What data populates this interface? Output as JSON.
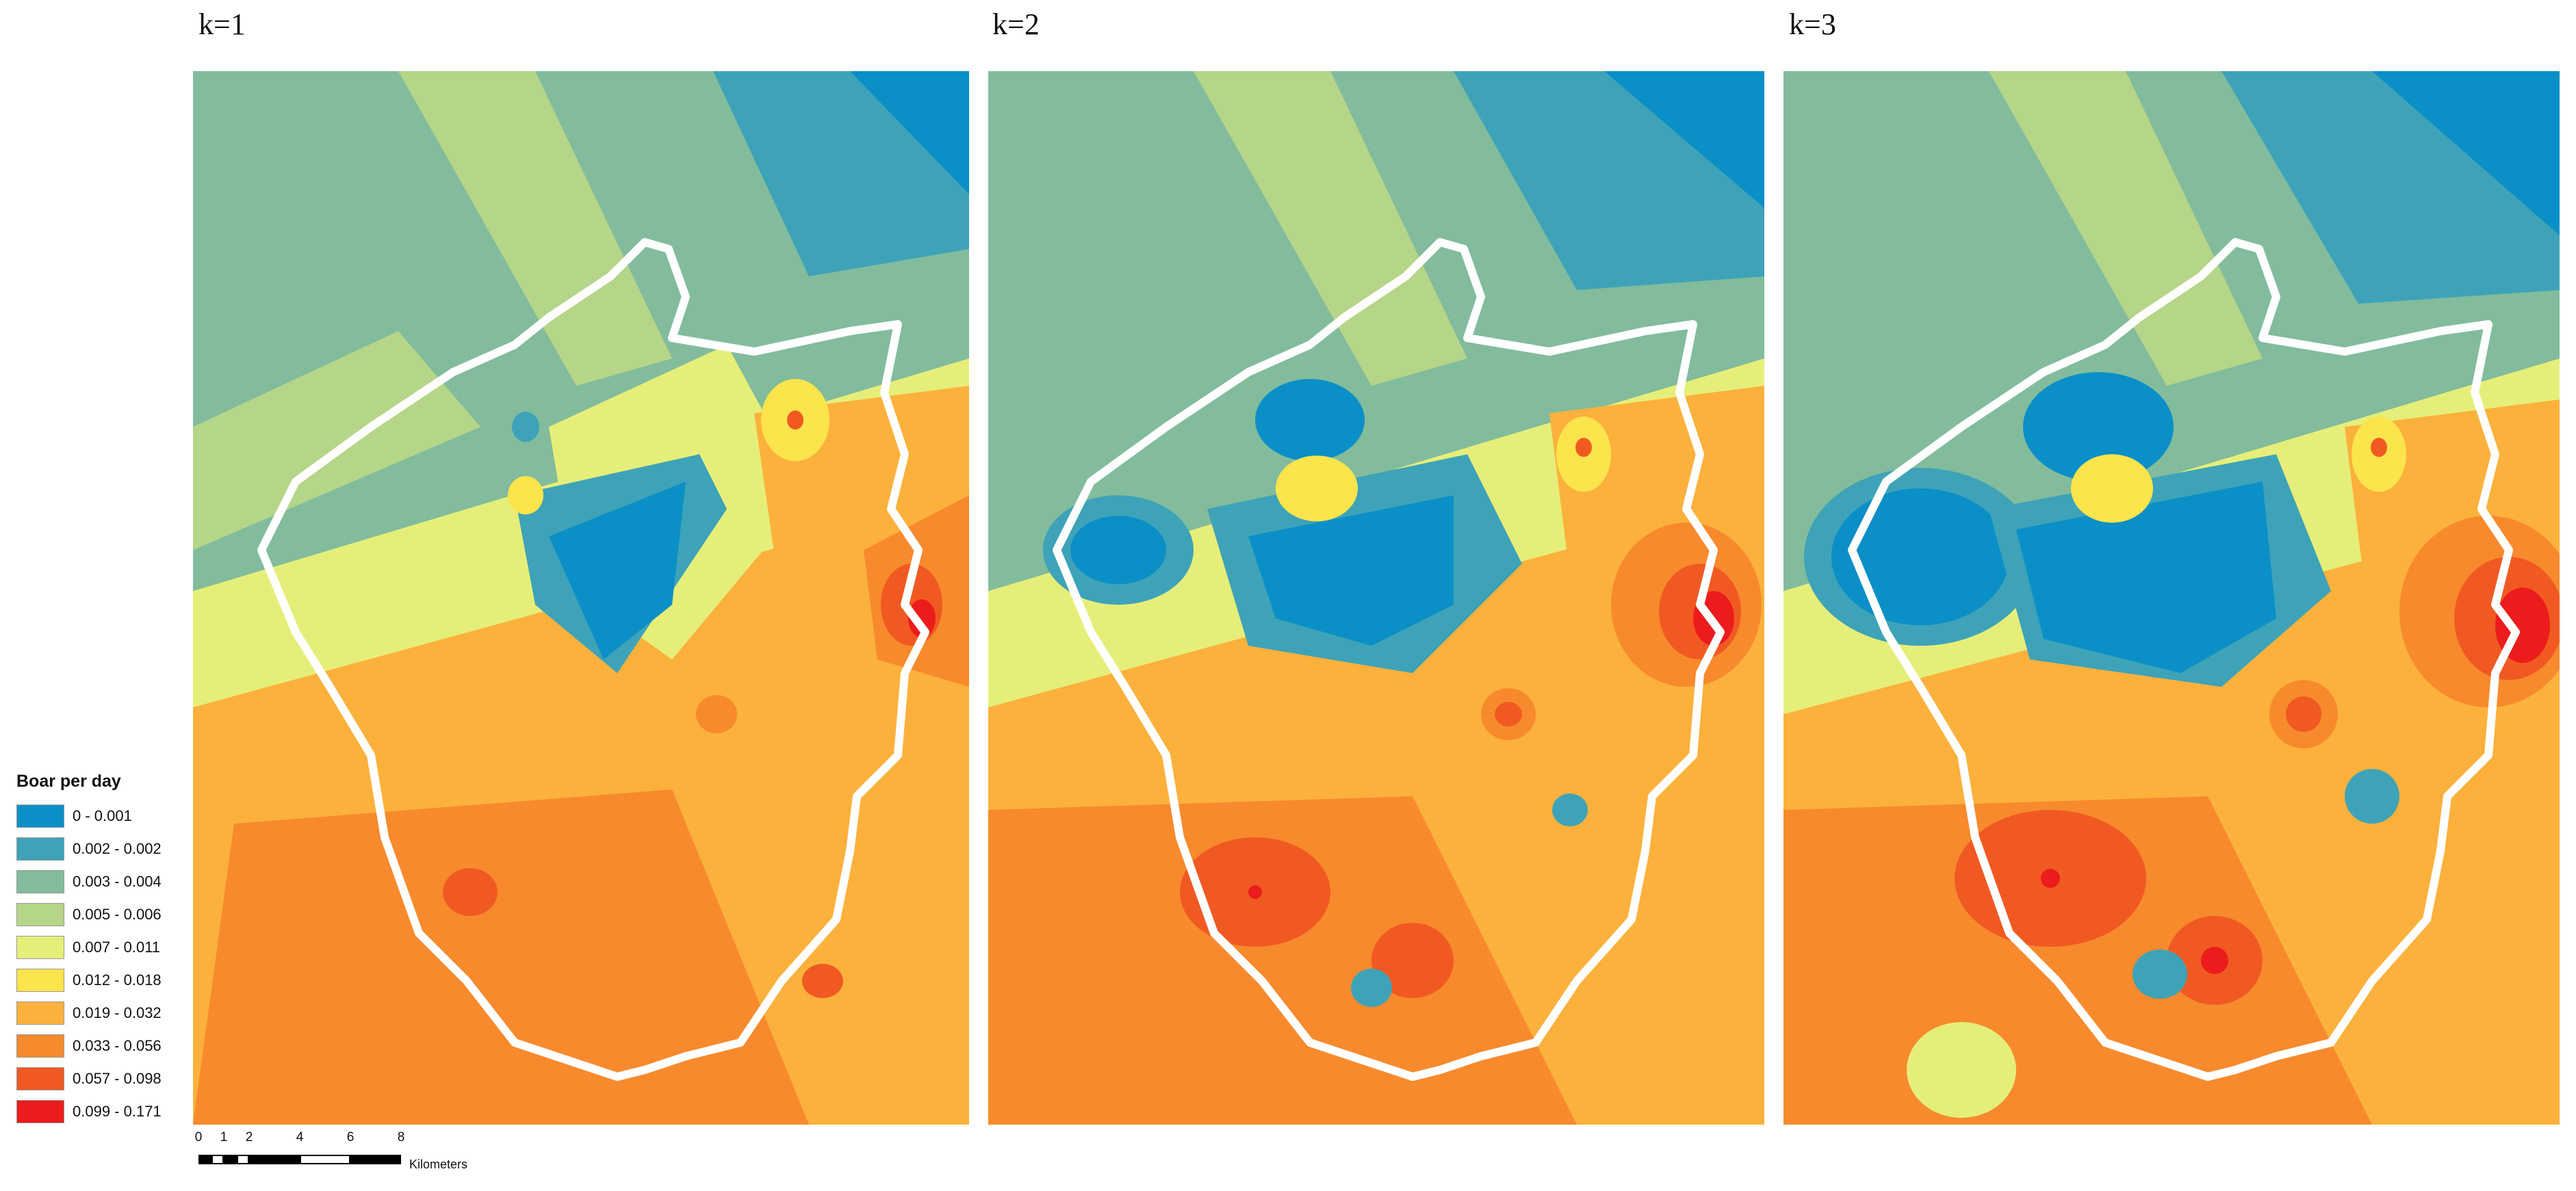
{
  "panels": [
    {
      "title": "k=1"
    },
    {
      "title": "k=2"
    },
    {
      "title": "k=3"
    }
  ],
  "legend": {
    "title": "Boar per day",
    "classes": [
      {
        "label": "0 - 0.001",
        "color": "#0b8fc7"
      },
      {
        "label": "0.002 - 0.002",
        "color": "#3ea3b8"
      },
      {
        "label": "0.003 - 0.004",
        "color": "#82bc9c"
      },
      {
        "label": "0.005 - 0.006",
        "color": "#b5d588"
      },
      {
        "label": "0.007 - 0.011",
        "color": "#e6ee7a"
      },
      {
        "label": "0.012 - 0.018",
        "color": "#fbe44c"
      },
      {
        "label": "0.019 - 0.032",
        "color": "#fbb13c"
      },
      {
        "label": "0.033 - 0.056",
        "color": "#f78a2d"
      },
      {
        "label": "0.057 - 0.098",
        "color": "#f05a22"
      },
      {
        "label": "0.099 - 0.171",
        "color": "#ec1c1c"
      }
    ]
  },
  "scale_bar": {
    "ticks": [
      "0",
      "1",
      "2",
      "4",
      "6",
      "8"
    ],
    "unit": "Kilometers"
  }
}
